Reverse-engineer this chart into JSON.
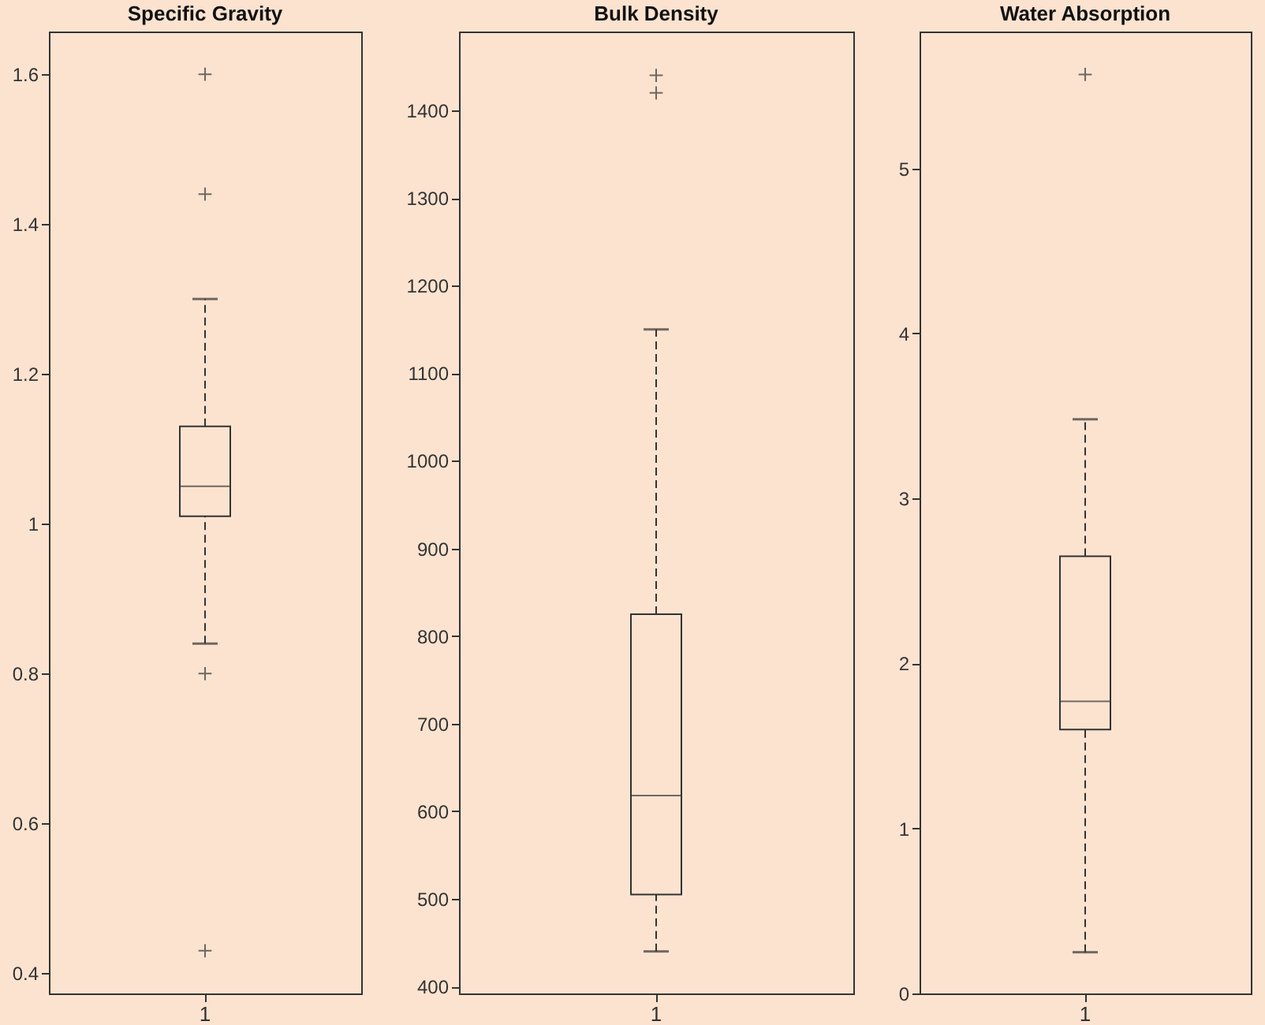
{
  "chart_data": [
    {
      "type": "box",
      "title": "Specific Gravity",
      "categories": [
        "1"
      ],
      "ylim": [
        0.373,
        1.657
      ],
      "yticks": [
        0.4,
        0.6,
        0.8,
        1,
        1.2,
        1.4,
        1.6
      ],
      "grid": false,
      "boxes": [
        {
          "low": 0.84,
          "q1": 1.01,
          "median": 1.05,
          "q3": 1.13,
          "high": 1.3,
          "outliers": [
            0.43,
            0.8,
            1.44,
            1.6
          ]
        }
      ]
    },
    {
      "type": "box",
      "title": "Bulk Density",
      "categories": [
        "1"
      ],
      "ylim": [
        392,
        1490
      ],
      "yticks": [
        400,
        500,
        600,
        700,
        800,
        900,
        1000,
        1100,
        1200,
        1300,
        1400
      ],
      "grid": false,
      "boxes": [
        {
          "low": 440,
          "q1": 505,
          "median": 618,
          "q3": 825,
          "high": 1150,
          "outliers": [
            1420,
            1440
          ]
        }
      ]
    },
    {
      "type": "box",
      "title": "Water Absorption",
      "categories": [
        "1"
      ],
      "ylim": [
        0,
        5.83
      ],
      "yticks": [
        0,
        1,
        2,
        3,
        4,
        5
      ],
      "grid": false,
      "boxes": [
        {
          "low": 0.25,
          "q1": 1.6,
          "median": 1.77,
          "q3": 2.65,
          "high": 3.48,
          "outliers": [
            5.57
          ]
        }
      ]
    }
  ]
}
